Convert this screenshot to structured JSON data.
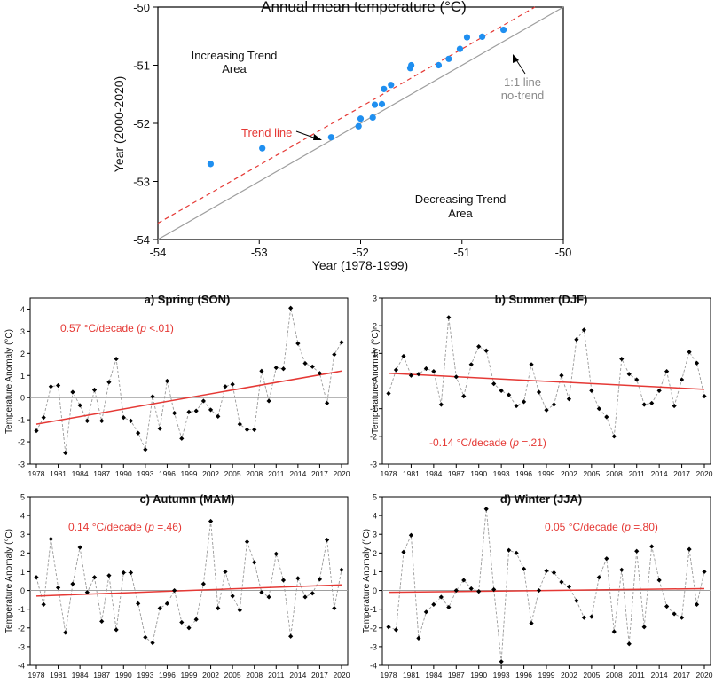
{
  "chart_data": [
    {
      "type": "scatter",
      "title": "Annual mean temperature (°C)",
      "xlabel": "Year (1978-1999)",
      "ylabel": "Year (2000-2020)",
      "xlim": [
        -54,
        -50
      ],
      "ylim": [
        -54,
        -50
      ],
      "xticks": [
        "-54",
        "-53",
        "-52",
        "-51",
        "-50"
      ],
      "yticks": [
        "-54",
        "-53",
        "-52",
        "-51",
        "-50"
      ],
      "x": [
        -53.48,
        -52.97,
        -52.29,
        -52.02,
        -52.0,
        -51.88,
        -51.86,
        -51.79,
        -51.77,
        -51.7,
        -51.51,
        -51.5,
        -51.23,
        -51.13,
        -51.02,
        -50.95,
        -50.8,
        -50.59
      ],
      "y": [
        -52.7,
        -52.43,
        -52.24,
        -52.05,
        -51.92,
        -51.9,
        -51.68,
        -51.67,
        -51.41,
        -51.34,
        -51.05,
        -51.0,
        -51.0,
        -50.89,
        -50.72,
        -50.52,
        -50.51,
        -50.39
      ],
      "point_color": "#1f8ff0",
      "trend_line": {
        "label": "Trend line",
        "intercept": 0.28,
        "color": "#e53935"
      },
      "one_to_one_line": {
        "label_line1": "1:1 line",
        "label_line2": "no-trend",
        "color": "#9e9e9e"
      },
      "area_labels": {
        "increasing_line1": "Increasing Trend",
        "increasing_line2": "Area",
        "decreasing_line1": "Decreasing Trend",
        "decreasing_line2": "Area"
      }
    },
    {
      "type": "line",
      "title": "a) Spring (SON)",
      "ylabel": "Temperature Anomaly (°C)",
      "ylim": [
        -3,
        4.5
      ],
      "yticks": [
        -3,
        -2,
        -1,
        0,
        1,
        2,
        3,
        4
      ],
      "years": [
        1978,
        1979,
        1980,
        1981,
        1982,
        1983,
        1984,
        1985,
        1986,
        1987,
        1988,
        1989,
        1990,
        1991,
        1992,
        1993,
        1994,
        1995,
        1996,
        1997,
        1998,
        1999,
        2000,
        2001,
        2002,
        2003,
        2004,
        2005,
        2006,
        2007,
        2008,
        2009,
        2010,
        2011,
        2012,
        2013,
        2014,
        2015,
        2016,
        2017,
        2018,
        2019,
        2020
      ],
      "xticks": [
        1978,
        1981,
        1984,
        1987,
        1990,
        1993,
        1996,
        1999,
        2002,
        2005,
        2008,
        2011,
        2014,
        2017,
        2020
      ],
      "values": [
        -1.5,
        -0.9,
        0.5,
        0.55,
        -2.5,
        0.25,
        -0.35,
        -1.05,
        0.35,
        -1.05,
        0.7,
        1.75,
        -0.9,
        -1.05,
        -1.6,
        -2.35,
        0.05,
        -1.4,
        0.75,
        -0.7,
        -1.85,
        -0.65,
        -0.6,
        -0.15,
        -0.55,
        -0.85,
        0.5,
        0.6,
        -1.2,
        -1.45,
        -1.45,
        1.2,
        -0.15,
        1.35,
        1.3,
        4.05,
        2.45,
        1.55,
        1.4,
        1.1,
        -0.25,
        1.95,
        2.5
      ],
      "trend": [
        -1.2,
        1.2
      ],
      "trend_label": "0.57 °C/decade (",
      "p_symbol": "p",
      "p_text": " <.01)"
    },
    {
      "type": "line",
      "title": "b) Summer (DJF)",
      "ylabel": "Temperature Anomaly (°C)",
      "ylim": [
        -3,
        3
      ],
      "yticks": [
        -3,
        -2,
        -1,
        0,
        1,
        2,
        3
      ],
      "years": [
        1978,
        1979,
        1980,
        1981,
        1982,
        1983,
        1984,
        1985,
        1986,
        1987,
        1988,
        1989,
        1990,
        1991,
        1992,
        1993,
        1994,
        1995,
        1996,
        1997,
        1998,
        1999,
        2000,
        2001,
        2002,
        2003,
        2004,
        2005,
        2006,
        2007,
        2008,
        2009,
        2010,
        2011,
        2012,
        2013,
        2014,
        2015,
        2016,
        2017,
        2018,
        2019,
        2020
      ],
      "xticks": [
        1978,
        1981,
        1984,
        1987,
        1990,
        1993,
        1996,
        1999,
        2002,
        2005,
        2008,
        2011,
        2014,
        2017,
        2020
      ],
      "values": [
        -0.45,
        0.4,
        0.9,
        0.2,
        0.25,
        0.45,
        0.35,
        -0.85,
        2.3,
        0.15,
        -0.55,
        0.6,
        1.25,
        1.1,
        -0.1,
        -0.35,
        -0.5,
        -0.9,
        -0.75,
        0.6,
        -0.4,
        -1.05,
        -0.85,
        0.2,
        -0.65,
        1.5,
        1.85,
        -0.35,
        -1.0,
        -1.3,
        -2.0,
        0.8,
        0.25,
        0.05,
        -0.85,
        -0.8,
        -0.35,
        0.35,
        -0.9,
        0.05,
        1.05,
        0.65,
        -0.55
      ],
      "trend": [
        0.28,
        -0.3
      ],
      "trend_label": "-0.14 °C/decade (",
      "p_symbol": "p",
      "p_text": " =.21)"
    },
    {
      "type": "line",
      "title": "c) Autumn (MAM)",
      "ylabel": "Temperature Anomaly (°C)",
      "ylim": [
        -4,
        5
      ],
      "yticks": [
        -4,
        -3,
        -2,
        -1,
        0,
        1,
        2,
        3,
        4,
        5
      ],
      "years": [
        1978,
        1979,
        1980,
        1981,
        1982,
        1983,
        1984,
        1985,
        1986,
        1987,
        1988,
        1989,
        1990,
        1991,
        1992,
        1993,
        1994,
        1995,
        1996,
        1997,
        1998,
        1999,
        2000,
        2001,
        2002,
        2003,
        2004,
        2005,
        2006,
        2007,
        2008,
        2009,
        2010,
        2011,
        2012,
        2013,
        2014,
        2015,
        2016,
        2017,
        2018,
        2019,
        2020
      ],
      "xticks": [
        1978,
        1981,
        1984,
        1987,
        1990,
        1993,
        1996,
        1999,
        2002,
        2005,
        2008,
        2011,
        2014,
        2017,
        2020
      ],
      "values": [
        0.7,
        -0.75,
        2.75,
        0.15,
        -2.25,
        0.35,
        2.3,
        -0.1,
        0.7,
        -1.65,
        0.8,
        -2.1,
        0.95,
        0.95,
        -0.7,
        -2.5,
        -2.8,
        -0.95,
        -0.7,
        0.0,
        -1.7,
        -2.0,
        -1.55,
        0.35,
        3.7,
        -0.95,
        1.0,
        -0.3,
        -1.05,
        2.6,
        1.5,
        -0.1,
        -0.35,
        1.95,
        0.55,
        -2.45,
        0.65,
        -0.35,
        -0.15,
        0.6,
        2.7,
        -0.95,
        1.1
      ],
      "trend": [
        -0.3,
        0.3
      ],
      "trend_label": "0.14 °C/decade (",
      "p_symbol": "p",
      "p_text": " =.46)"
    },
    {
      "type": "line",
      "title": "d) Winter (JJA)",
      "ylabel": "Temperature Anomaly (°C)",
      "ylim": [
        -4,
        5
      ],
      "yticks": [
        -4,
        -3,
        -2,
        -1,
        0,
        1,
        2,
        3,
        4,
        5
      ],
      "years": [
        1978,
        1979,
        1980,
        1981,
        1982,
        1983,
        1984,
        1985,
        1986,
        1987,
        1988,
        1989,
        1990,
        1991,
        1992,
        1993,
        1994,
        1995,
        1996,
        1997,
        1998,
        1999,
        2000,
        2001,
        2002,
        2003,
        2004,
        2005,
        2006,
        2007,
        2008,
        2009,
        2010,
        2011,
        2012,
        2013,
        2014,
        2015,
        2016,
        2017,
        2018,
        2019,
        2020
      ],
      "xticks": [
        1978,
        1981,
        1984,
        1987,
        1990,
        1993,
        1996,
        1999,
        2002,
        2005,
        2008,
        2011,
        2014,
        2017,
        2020
      ],
      "values": [
        -1.95,
        -2.1,
        2.05,
        2.95,
        -2.55,
        -1.15,
        -0.75,
        -0.35,
        -0.9,
        0.0,
        0.55,
        0.1,
        -0.05,
        4.35,
        0.05,
        -3.8,
        2.15,
        2.0,
        1.15,
        -1.75,
        0.0,
        1.05,
        0.95,
        0.45,
        0.2,
        -0.55,
        -1.45,
        -1.4,
        0.7,
        1.7,
        -2.2,
        1.1,
        -2.85,
        2.1,
        -1.95,
        2.35,
        0.55,
        -0.85,
        -1.25,
        -1.45,
        2.2,
        -0.75,
        1.0
      ],
      "trend": [
        -0.1,
        0.1
      ],
      "trend_label": "0.05 °C/decade (",
      "p_symbol": "p",
      "p_text": " =.80)"
    }
  ]
}
